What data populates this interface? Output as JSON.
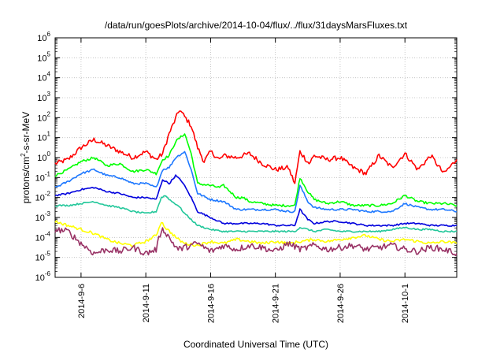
{
  "chart_data": {
    "type": "line",
    "title": "/data/run/goesPlots/archive/2014-10-04/flux/../flux/31daysMarsFluxes.txt",
    "xlabel": "Coordinated Universal Time (UTC)",
    "ylabel": "protons/cm2-s-sr-MeV",
    "y_scale": "log",
    "ylim": [
      1e-06,
      1000000.0
    ],
    "xlim": [
      "2014-09-04T00:00",
      "2014-10-05T00:00"
    ],
    "grid": true,
    "legend": "none",
    "x_ticks": [
      "2014-9-6",
      "2014-9-11",
      "2014-9-16",
      "2014-9-21",
      "2014-9-26",
      "2014-10-1"
    ],
    "x_tick_days": [
      2,
      7,
      12,
      17,
      22,
      27
    ],
    "y_ticks": [
      {
        "base": "10",
        "exp": "-6"
      },
      {
        "base": "10",
        "exp": "-5"
      },
      {
        "base": "10",
        "exp": "-4"
      },
      {
        "base": "10",
        "exp": "-3"
      },
      {
        "base": "10",
        "exp": "-2"
      },
      {
        "base": "10",
        "exp": "-1"
      },
      {
        "base": "10",
        "exp": "0"
      },
      {
        "base": "10",
        "exp": "1"
      },
      {
        "base": "10",
        "exp": "2"
      },
      {
        "base": "10",
        "exp": "3"
      },
      {
        "base": "10",
        "exp": "4"
      },
      {
        "base": "10",
        "exp": "5"
      },
      {
        "base": "10",
        "exp": "6"
      }
    ],
    "series": [
      {
        "color": "#ff0000",
        "x": [
          0,
          1,
          2,
          3,
          4,
          5,
          6,
          7,
          7.8,
          8.3,
          8.8,
          9.6,
          10.5,
          11,
          11.5,
          12,
          12.7,
          13,
          14,
          15,
          16,
          17,
          18,
          18.5,
          18.9,
          19.6,
          20,
          21,
          22,
          23,
          24,
          25,
          26,
          27,
          28,
          29,
          30,
          31
        ],
        "log10": [
          -0.3,
          -0.1,
          0.5,
          0.9,
          0.6,
          0.3,
          0,
          0.3,
          -0.1,
          0.2,
          1.2,
          2.4,
          1.6,
          0.5,
          -0.2,
          0.3,
          -0.1,
          0.1,
          0,
          0.2,
          -0.3,
          -0.6,
          -0.5,
          -1.3,
          0.3,
          -0.3,
          0.1,
          -0.1,
          0,
          -0.5,
          -0.8,
          0.1,
          -0.5,
          0.2,
          -0.6,
          0.1,
          -0.8,
          -0.1
        ]
      },
      {
        "color": "#00ff00",
        "x": [
          0,
          1,
          2,
          3,
          4,
          5,
          6,
          7,
          7.8,
          8.3,
          8.8,
          9.3,
          10,
          10.5,
          11,
          12,
          12.7,
          13,
          14,
          14.5,
          15,
          16,
          17,
          18,
          18.5,
          18.9,
          19.5,
          20,
          21,
          22,
          23,
          24,
          25,
          26,
          27,
          28,
          29,
          30,
          31
        ],
        "log10": [
          -0.9,
          -0.6,
          -0.2,
          0,
          -0.4,
          -0.3,
          -0.7,
          -0.6,
          -0.8,
          -0.1,
          0.1,
          0.8,
          1.2,
          0.2,
          -1.3,
          -1.4,
          -1.5,
          -1.4,
          -2.0,
          -2.0,
          -2.2,
          -2.3,
          -2.4,
          -2.4,
          -2.4,
          -1.0,
          -1.7,
          -2.1,
          -2.3,
          -2.2,
          -2.4,
          -2.4,
          -2.4,
          -2.3,
          -1.9,
          -2.2,
          -2.3,
          -2.3,
          -2.4
        ]
      },
      {
        "color": "#1e78ff",
        "x": [
          0,
          1,
          2,
          3,
          4,
          5,
          6,
          7,
          7.8,
          8.3,
          8.8,
          9.3,
          10,
          10.5,
          11,
          12,
          13,
          14,
          15,
          16,
          17,
          18,
          18.5,
          18.9,
          19.5,
          20,
          21,
          22,
          23,
          24,
          25,
          26,
          27,
          28,
          29,
          30,
          31
        ],
        "log10": [
          -1.5,
          -1.2,
          -0.8,
          -0.6,
          -0.9,
          -1.0,
          -1.3,
          -1.3,
          -1.5,
          -0.6,
          -0.5,
          0.0,
          0.3,
          -0.6,
          -1.8,
          -2.1,
          -2.2,
          -2.6,
          -2.6,
          -2.6,
          -2.6,
          -2.7,
          -2.7,
          -1.4,
          -2.2,
          -2.5,
          -2.6,
          -2.6,
          -2.6,
          -2.7,
          -2.7,
          -2.7,
          -2.3,
          -2.5,
          -2.6,
          -2.6,
          -2.7
        ]
      },
      {
        "color": "#0000dd",
        "x": [
          0,
          1,
          2,
          3,
          4,
          5,
          6,
          7,
          7.8,
          8.3,
          8.8,
          9.3,
          9.8,
          10.5,
          11,
          12,
          13,
          14,
          15,
          16,
          17,
          18,
          18.5,
          18.9,
          19.5,
          20,
          21,
          22,
          23,
          24,
          25,
          26,
          27,
          28,
          29,
          30,
          31
        ],
        "log10": [
          -1.9,
          -1.8,
          -1.6,
          -1.5,
          -1.7,
          -1.8,
          -2.0,
          -2.0,
          -2.1,
          -1.1,
          -1.3,
          -0.9,
          -1.2,
          -2.0,
          -2.7,
          -3.0,
          -3.3,
          -3.3,
          -3.3,
          -3.3,
          -3.4,
          -3.4,
          -3.4,
          -2.6,
          -3.1,
          -3.3,
          -3.2,
          -3.2,
          -3.3,
          -3.4,
          -3.4,
          -3.4,
          -3.3,
          -3.3,
          -3.4,
          -3.4,
          -3.4
        ]
      },
      {
        "color": "#22c79a",
        "x": [
          0,
          1,
          2,
          3,
          4,
          5,
          6,
          7,
          7.8,
          8.2,
          8.5,
          9,
          9.5,
          10,
          11,
          12,
          13,
          14,
          15,
          16,
          17,
          18,
          18.5,
          18.9,
          19.5,
          20,
          21,
          22,
          23,
          24,
          25,
          26,
          27,
          28,
          29,
          30,
          31
        ],
        "log10": [
          -2.4,
          -2.4,
          -2.3,
          -2.2,
          -2.4,
          -2.5,
          -2.7,
          -2.8,
          -2.7,
          -2.0,
          -1.9,
          -2.2,
          -2.4,
          -2.8,
          -3.4,
          -3.6,
          -3.7,
          -3.7,
          -3.7,
          -3.7,
          -3.7,
          -3.7,
          -3.7,
          -3.5,
          -3.6,
          -3.7,
          -3.6,
          -3.7,
          -3.7,
          -3.7,
          -3.7,
          -3.6,
          -3.5,
          -3.6,
          -3.6,
          -3.7,
          -3.7
        ]
      },
      {
        "color": "#ffff00",
        "x": [
          0,
          1,
          2,
          3,
          4,
          5,
          6,
          7,
          7.8,
          8.2,
          8.5,
          9,
          9.5,
          10,
          11,
          12,
          13,
          14,
          15,
          16,
          17,
          18,
          19,
          20,
          21,
          22,
          23,
          24,
          25,
          26,
          27,
          28,
          29,
          30,
          31
        ],
        "log10": [
          -3.2,
          -3.4,
          -3.6,
          -3.8,
          -4.1,
          -4.3,
          -4.4,
          -4.2,
          -3.9,
          -3.2,
          -3.5,
          -3.8,
          -4.1,
          -4.3,
          -4.4,
          -4.2,
          -4.3,
          -4.1,
          -4.2,
          -4.3,
          -4.2,
          -4.3,
          -4.2,
          -4.1,
          -4.2,
          -4.1,
          -4.0,
          -3.9,
          -4.1,
          -4.2,
          -4.1,
          -4.2,
          -4.3,
          -4.2,
          -4.3
        ]
      },
      {
        "color": "#993366",
        "x": [
          0,
          1,
          2,
          3,
          4,
          5,
          6,
          7,
          7.8,
          8.2,
          8.5,
          9,
          9.5,
          10,
          11,
          12,
          13,
          14,
          15,
          16,
          17,
          18,
          19,
          20,
          21,
          22,
          23,
          24,
          25,
          26,
          27,
          28,
          29,
          30,
          31
        ],
        "log10": [
          -3.6,
          -3.7,
          -4.3,
          -4.8,
          -4.6,
          -4.7,
          -4.5,
          -4.8,
          -4.6,
          -3.6,
          -3.7,
          -4.2,
          -4.6,
          -4.5,
          -4.3,
          -4.7,
          -4.4,
          -4.6,
          -4.4,
          -4.5,
          -4.7,
          -4.3,
          -4.6,
          -4.4,
          -4.6,
          -4.5,
          -4.4,
          -4.6,
          -4.5,
          -4.4,
          -4.6,
          -4.7,
          -4.5,
          -4.6,
          -4.8
        ]
      }
    ]
  }
}
